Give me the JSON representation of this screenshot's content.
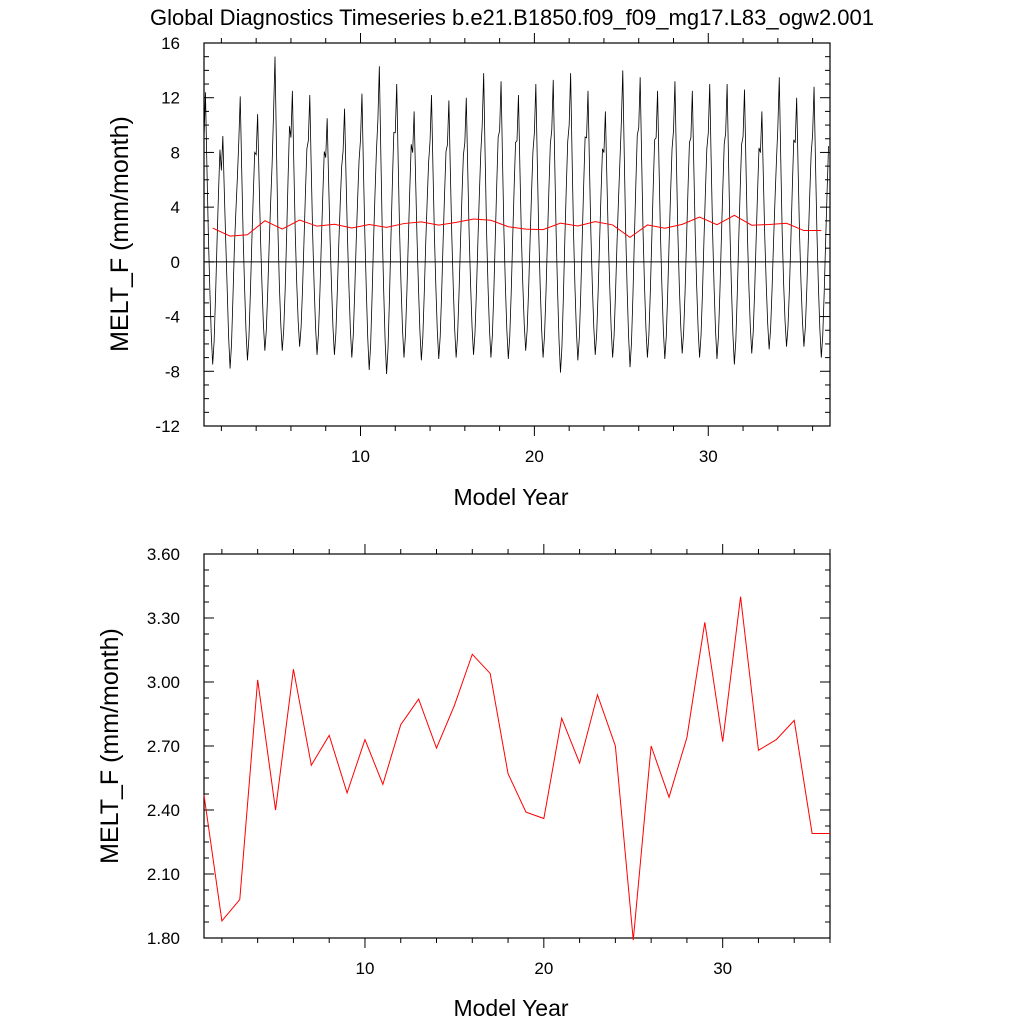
{
  "title": "Global Diagnostics Timeseries b.e21.B1850.f09_f09_mg17.L83_ogw2.001",
  "colors": {
    "monthly": "#000000",
    "annual": "#ff0000",
    "axis": "#000000"
  },
  "chart_data": [
    {
      "type": "line",
      "xlabel": "Model Year",
      "ylabel": "MELT_F (mm/month)",
      "xlim": [
        1,
        37
      ],
      "ylim": [
        -12,
        16
      ],
      "xticks": [
        "10",
        "20",
        "30"
      ],
      "yticks": [
        "-12",
        "-8",
        "-4",
        "0",
        "4",
        "8",
        "12",
        "16"
      ],
      "zero_line": true,
      "monthly_cycle": [
        9,
        12.4,
        7,
        2,
        -2,
        -5.5,
        -7.8,
        -6,
        -2.5,
        1.5,
        5,
        8.2
      ],
      "monthly_peak_by_year": [
        12.4,
        9.2,
        12.1,
        10.8,
        15.0,
        12.5,
        12.2,
        10.5,
        11.2,
        12.3,
        14.3,
        13.0,
        11.0,
        12.2,
        11.8,
        12.0,
        13.8,
        13.2,
        12.2,
        13.0,
        13.3,
        13.8,
        12.5,
        11.0,
        14.0,
        13.5,
        12.5,
        13.2,
        12.5,
        13.0,
        13.0,
        12.6,
        11.0,
        13.5,
        12.0,
        12.8
      ],
      "monthly_trough_by_year": [
        -7.5,
        -7.8,
        -7.2,
        -6.5,
        -6.5,
        -6.2,
        -6.8,
        -6.8,
        -7.0,
        -7.9,
        -8.2,
        -7.0,
        -7.2,
        -7.1,
        -7.0,
        -6.8,
        -7.0,
        -7.1,
        -6.5,
        -7.0,
        -8.1,
        -7.2,
        -6.8,
        -7.0,
        -7.7,
        -7.0,
        -7.1,
        -6.7,
        -7.0,
        -7.1,
        -7.5,
        -6.7,
        -6.4,
        -6.2,
        -6.2,
        -7.0
      ],
      "series": [
        {
          "name": "",
          "color": "#000000",
          "kind": "monthly"
        },
        {
          "name": "",
          "color": "#ff0000",
          "kind": "annual"
        }
      ]
    },
    {
      "type": "line",
      "xlabel": "Model Year",
      "ylabel": "MELT_F (mm/month)",
      "xlim": [
        1,
        36
      ],
      "ylim": [
        1.8,
        3.6
      ],
      "xticks": [
        "10",
        "20",
        "30"
      ],
      "yticks": [
        "1.80",
        "2.10",
        "2.40",
        "2.70",
        "3.00",
        "3.30",
        "3.60"
      ],
      "x": [
        1,
        2,
        3,
        4,
        5,
        6,
        7,
        8,
        9,
        10,
        11,
        12,
        13,
        14,
        15,
        16,
        17,
        18,
        19,
        20,
        21,
        22,
        23,
        24,
        25,
        26,
        27,
        28,
        29,
        30,
        31,
        32,
        33,
        34,
        35,
        36
      ],
      "values": [
        2.47,
        1.88,
        1.98,
        3.01,
        2.4,
        3.06,
        2.61,
        2.75,
        2.48,
        2.73,
        2.52,
        2.8,
        2.92,
        2.69,
        2.89,
        3.13,
        3.04,
        2.57,
        2.39,
        2.36,
        2.83,
        2.62,
        2.94,
        2.7,
        1.79,
        2.7,
        2.46,
        2.74,
        3.28,
        2.72,
        3.4,
        2.68,
        2.73,
        2.82,
        2.29,
        2.29
      ]
    }
  ]
}
